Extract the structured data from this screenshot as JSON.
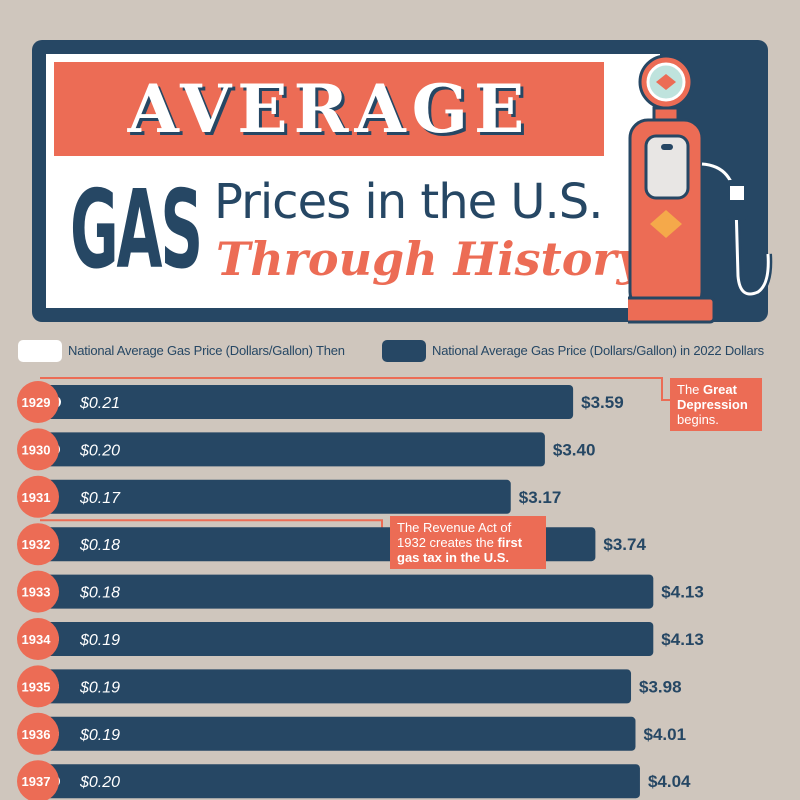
{
  "title": {
    "main": "AVERAGE",
    "gas": "GAS",
    "line1": "Prices in the U.S.",
    "line2": "Through History"
  },
  "legend": {
    "then_label": "National Average Gas Price (Dollars/Gallon) Then",
    "adjusted_label": "National Average Gas Price (Dollars/Gallon) in 2022 Dollars"
  },
  "colors": {
    "navy": "#264764",
    "coral": "#ec6c55",
    "background": "#cfc6bd",
    "white": "#ffffff"
  },
  "annotations": [
    {
      "year": "1929",
      "pre": "The ",
      "bold": "Great Depression",
      "post": " begins."
    },
    {
      "year": "1932",
      "pre": "The Revenue Act of 1932 creates the ",
      "bold": "first gas tax in the U.S.",
      "post": ""
    }
  ],
  "chart_data": {
    "type": "bar",
    "orientation": "horizontal",
    "categories": [
      "1929",
      "1930",
      "1931",
      "1932",
      "1933",
      "1934",
      "1935",
      "1936",
      "1937"
    ],
    "series": [
      {
        "name": "National Average Gas Price (Dollars/Gallon) Then",
        "values": [
          0.21,
          0.2,
          0.17,
          0.18,
          0.18,
          0.19,
          0.19,
          0.19,
          0.2
        ],
        "labels": [
          "$0.21",
          "$0.20",
          "$0.17",
          "$0.18",
          "$0.18",
          "$0.19",
          "$0.19",
          "$0.19",
          "$0.20"
        ]
      },
      {
        "name": "National Average Gas Price (Dollars/Gallon) in 2022 Dollars",
        "values": [
          3.59,
          3.4,
          3.17,
          3.74,
          4.13,
          4.13,
          3.98,
          4.01,
          4.04
        ],
        "labels": [
          "$3.59",
          "$3.40",
          "$3.17",
          "$3.74",
          "$4.13",
          "$4.13",
          "$3.98",
          "$4.01",
          "$4.04"
        ]
      }
    ],
    "xlim": [
      0,
      4.5
    ],
    "grid": false,
    "legend": "top"
  }
}
